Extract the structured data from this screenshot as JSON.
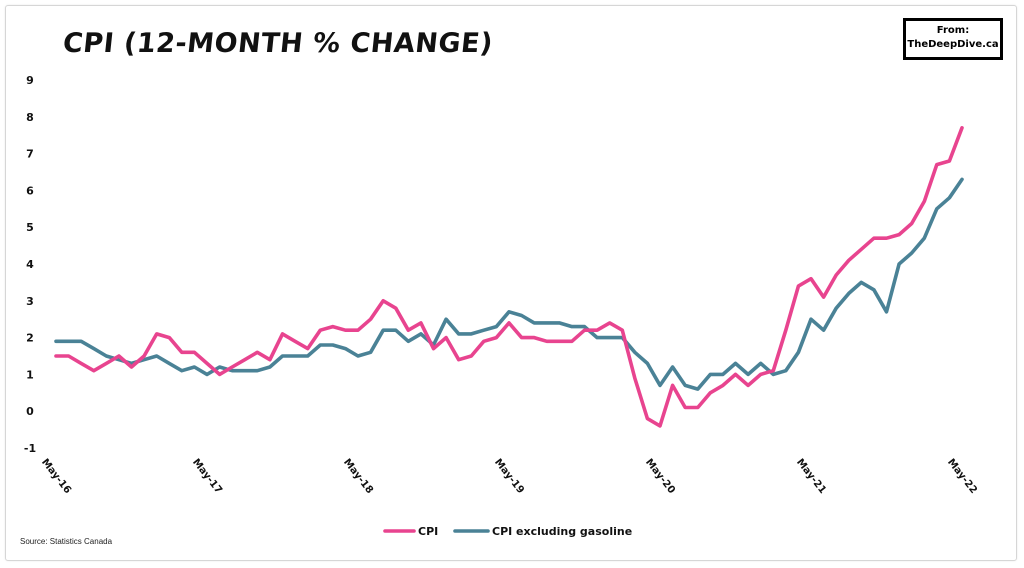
{
  "chart_data": {
    "type": "line",
    "title": "CPI (12-MONTH % CHANGE)",
    "badge_line1": "From:",
    "badge_line2": "TheDeepDive.ca",
    "source": "Source: Statistics Canada",
    "ylim": [
      -1,
      9
    ],
    "yticks": [
      "-1",
      "0",
      "1",
      "2",
      "3",
      "4",
      "5",
      "6",
      "7",
      "8",
      "9"
    ],
    "xtick_labels": [
      "May-16",
      "May-17",
      "May-18",
      "May-19",
      "May-20",
      "May-21",
      "May-22"
    ],
    "x": [
      "2016-05",
      "2016-06",
      "2016-07",
      "2016-08",
      "2016-09",
      "2016-10",
      "2016-11",
      "2016-12",
      "2017-01",
      "2017-02",
      "2017-03",
      "2017-04",
      "2017-05",
      "2017-06",
      "2017-07",
      "2017-08",
      "2017-09",
      "2017-10",
      "2017-11",
      "2017-12",
      "2018-01",
      "2018-02",
      "2018-03",
      "2018-04",
      "2018-05",
      "2018-06",
      "2018-07",
      "2018-08",
      "2018-09",
      "2018-10",
      "2018-11",
      "2018-12",
      "2019-01",
      "2019-02",
      "2019-03",
      "2019-04",
      "2019-05",
      "2019-06",
      "2019-07",
      "2019-08",
      "2019-09",
      "2019-10",
      "2019-11",
      "2019-12",
      "2020-01",
      "2020-02",
      "2020-03",
      "2020-04",
      "2020-05",
      "2020-06",
      "2020-07",
      "2020-08",
      "2020-09",
      "2020-10",
      "2020-11",
      "2020-12",
      "2021-01",
      "2021-02",
      "2021-03",
      "2021-04",
      "2021-05",
      "2021-06",
      "2021-07",
      "2021-08",
      "2021-09",
      "2021-10",
      "2021-11",
      "2021-12",
      "2022-01",
      "2022-02",
      "2022-03",
      "2022-04",
      "2022-05"
    ],
    "series": [
      {
        "name": "CPI",
        "color": "#e8448f",
        "values": [
          1.5,
          1.5,
          1.3,
          1.1,
          1.3,
          1.5,
          1.2,
          1.5,
          2.1,
          2.0,
          1.6,
          1.6,
          1.3,
          1.0,
          1.2,
          1.4,
          1.6,
          1.4,
          2.1,
          1.9,
          1.7,
          2.2,
          2.3,
          2.2,
          2.2,
          2.5,
          3.0,
          2.8,
          2.2,
          2.4,
          1.7,
          2.0,
          1.4,
          1.5,
          1.9,
          2.0,
          2.4,
          2.0,
          2.0,
          1.9,
          1.9,
          1.9,
          2.2,
          2.2,
          2.4,
          2.2,
          0.9,
          -0.2,
          -0.4,
          0.7,
          0.1,
          0.1,
          0.5,
          0.7,
          1.0,
          0.7,
          1.0,
          1.1,
          2.2,
          3.4,
          3.6,
          3.1,
          3.7,
          4.1,
          4.4,
          4.7,
          4.7,
          4.8,
          5.1,
          5.7,
          6.7,
          6.8,
          7.7
        ]
      },
      {
        "name": "CPI excluding gasoline",
        "color": "#4a8296",
        "values": [
          1.9,
          1.9,
          1.9,
          1.7,
          1.5,
          1.4,
          1.3,
          1.4,
          1.5,
          1.3,
          1.1,
          1.2,
          1.0,
          1.2,
          1.1,
          1.1,
          1.1,
          1.2,
          1.5,
          1.5,
          1.5,
          1.8,
          1.8,
          1.7,
          1.5,
          1.6,
          2.2,
          2.2,
          1.9,
          2.1,
          1.8,
          2.5,
          2.1,
          2.1,
          2.2,
          2.3,
          2.7,
          2.6,
          2.4,
          2.4,
          2.4,
          2.3,
          2.3,
          2.0,
          2.0,
          2.0,
          1.6,
          1.3,
          0.7,
          1.2,
          0.7,
          0.6,
          1.0,
          1.0,
          1.3,
          1.0,
          1.3,
          1.0,
          1.1,
          1.6,
          2.5,
          2.2,
          2.8,
          3.2,
          3.5,
          3.3,
          2.7,
          4.0,
          4.3,
          4.7,
          5.5,
          5.8,
          6.3
        ]
      }
    ],
    "legend": [
      "CPI",
      "CPI excluding gasoline"
    ],
    "legend_position": "bottom-center",
    "grid": false
  }
}
